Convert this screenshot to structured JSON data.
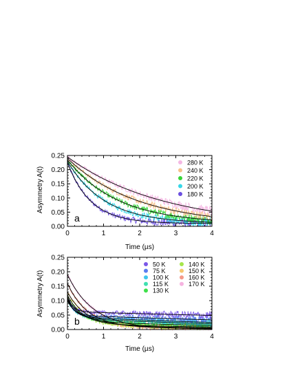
{
  "chart_data": [
    {
      "type": "scatter",
      "panel_label": "a",
      "xlabel": "Time (µs)",
      "ylabel": "Asymmetry A(t)",
      "xlim": [
        0,
        4
      ],
      "ylim": [
        0,
        0.25
      ],
      "xticks": [
        "0",
        "1",
        "2",
        "3",
        "4"
      ],
      "yticks": [
        "0.00",
        "0.05",
        "0.10",
        "0.15",
        "0.20",
        "0.25"
      ],
      "legend": "top-right",
      "grid": false,
      "series": [
        {
          "name": "280 K",
          "color": "#f4b8e4",
          "a0": 0.245,
          "lambda": 0.38,
          "baseline": 0.0
        },
        {
          "name": "240 K",
          "color": "#f7c08a",
          "a0": 0.24,
          "lambda": 0.52,
          "baseline": 0.005
        },
        {
          "name": "220 K",
          "color": "#37d437",
          "a0": 0.235,
          "lambda": 0.72,
          "baseline": 0.01
        },
        {
          "name": "200 K",
          "color": "#36d7e8",
          "a0": 0.23,
          "lambda": 0.98,
          "baseline": 0.01
        },
        {
          "name": "180 K",
          "color": "#6b4fe0",
          "a0": 0.225,
          "lambda": 1.55,
          "baseline": 0.01
        }
      ]
    },
    {
      "type": "scatter",
      "panel_label": "b",
      "xlabel": "Time (µs)",
      "ylabel": "Asymmetry A(t)",
      "xlim": [
        0,
        4
      ],
      "ylim": [
        0,
        0.25
      ],
      "xticks": [
        "0",
        "1",
        "2",
        "3",
        "4"
      ],
      "yticks": [
        "0.00",
        "0.05",
        "0.10",
        "0.15",
        "0.20",
        "0.25"
      ],
      "legend": "top-right",
      "grid": false,
      "series": [
        {
          "name": "50 K",
          "color": "#7b57e8",
          "a0": 0.115,
          "lambda": 7.0,
          "baseline": 0.062,
          "slow": 0.12
        },
        {
          "name": "75 K",
          "color": "#5a7cf0",
          "a0": 0.11,
          "lambda": 6.0,
          "baseline": 0.05,
          "slow": 0.2
        },
        {
          "name": "100 K",
          "color": "#3fc6ec",
          "a0": 0.105,
          "lambda": 5.0,
          "baseline": 0.045,
          "slow": 0.3
        },
        {
          "name": "115 K",
          "color": "#3fe0b0",
          "a0": 0.1,
          "lambda": 4.0,
          "baseline": 0.04,
          "slow": 0.35
        },
        {
          "name": "130 K",
          "color": "#3ee04a",
          "a0": 0.11,
          "lambda": 3.0,
          "baseline": 0.03,
          "slow": 0.38
        },
        {
          "name": "140 K",
          "color": "#a6e64a",
          "a0": 0.12,
          "lambda": 2.5,
          "baseline": 0.02,
          "slow": 0.4
        },
        {
          "name": "150 K",
          "color": "#f5c76e",
          "a0": 0.13,
          "lambda": 2.0,
          "baseline": 0.015,
          "slow": 0.45
        },
        {
          "name": "160 K",
          "color": "#f59a8a",
          "a0": 0.16,
          "lambda": 1.8,
          "baseline": 0.01,
          "slow": 0.5
        },
        {
          "name": "170 K",
          "color": "#f5b3e0",
          "a0": 0.19,
          "lambda": 1.4,
          "baseline": 0.005,
          "slow": 0.55
        }
      ]
    }
  ]
}
